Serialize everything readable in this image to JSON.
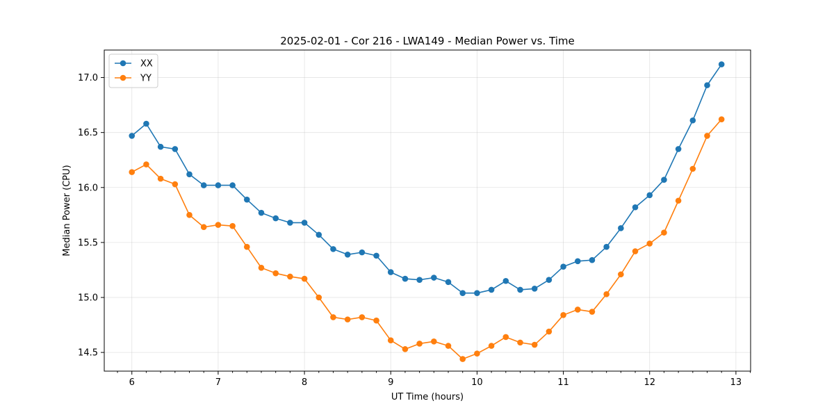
{
  "chart_data": {
    "type": "line",
    "title": "2025-02-01 - Cor 216 - LWA149 - Median Power vs. Time",
    "xlabel": "UT Time (hours)",
    "ylabel": "Median Power (CPU)",
    "xlim": [
      5.68,
      13.17
    ],
    "ylim": [
      14.33,
      17.25
    ],
    "xticks": [
      6,
      7,
      8,
      9,
      10,
      11,
      12,
      13
    ],
    "xtick_labels": [
      "6",
      "7",
      "8",
      "9",
      "10",
      "11",
      "12",
      "13"
    ],
    "yticks": [
      14.5,
      15.0,
      15.5,
      16.0,
      16.5,
      17.0
    ],
    "ytick_labels": [
      "14.5",
      "15.0",
      "15.5",
      "16.0",
      "16.5",
      "17.0"
    ],
    "grid": true,
    "legend_position": "top-left",
    "x": [
      6.0,
      6.1667,
      6.3333,
      6.5,
      6.6667,
      6.8333,
      7.0,
      7.1667,
      7.3333,
      7.5,
      7.6667,
      7.8333,
      8.0,
      8.1667,
      8.3333,
      8.5,
      8.6667,
      8.8333,
      9.0,
      9.1667,
      9.3333,
      9.5,
      9.6667,
      9.8333,
      10.0,
      10.1667,
      10.3333,
      10.5,
      10.6667,
      10.8333,
      11.0,
      11.1667,
      11.3333,
      11.5,
      11.6667,
      11.8333,
      12.0,
      12.1667,
      12.3333,
      12.5,
      12.6667,
      12.8333
    ],
    "series": [
      {
        "name": "XX",
        "color": "#1f77b4",
        "values": [
          16.47,
          16.58,
          16.37,
          16.35,
          16.12,
          16.02,
          16.02,
          16.02,
          15.89,
          15.77,
          15.72,
          15.68,
          15.68,
          15.57,
          15.44,
          15.39,
          15.41,
          15.38,
          15.23,
          15.17,
          15.16,
          15.18,
          15.14,
          15.04,
          15.04,
          15.07,
          15.15,
          15.07,
          15.08,
          15.16,
          15.28,
          15.33,
          15.34,
          15.46,
          15.63,
          15.82,
          15.93,
          16.07,
          16.35,
          16.61,
          16.93,
          17.12
        ]
      },
      {
        "name": "YY",
        "color": "#ff7f0e",
        "values": [
          16.14,
          16.21,
          16.08,
          16.03,
          15.75,
          15.64,
          15.66,
          15.65,
          15.46,
          15.27,
          15.22,
          15.19,
          15.17,
          15.0,
          14.82,
          14.8,
          14.82,
          14.79,
          14.61,
          14.53,
          14.58,
          14.6,
          14.56,
          14.44,
          14.49,
          14.56,
          14.64,
          14.59,
          14.57,
          14.69,
          14.84,
          14.89,
          14.87,
          15.03,
          15.21,
          15.42,
          15.49,
          15.59,
          15.88,
          16.17,
          16.47,
          16.62
        ]
      }
    ]
  }
}
